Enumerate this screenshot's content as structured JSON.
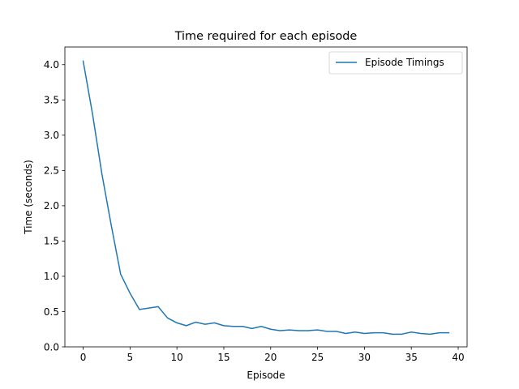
{
  "chart_data": {
    "type": "line",
    "title": "Time required for each episode",
    "xlabel": "Episode",
    "ylabel": "Time (seconds)",
    "xlim": [
      -1.95,
      40.95
    ],
    "ylim": [
      -0.0,
      4.25
    ],
    "x_ticks": [
      0,
      5,
      10,
      15,
      20,
      25,
      30,
      35,
      40
    ],
    "x_tick_labels": [
      "0",
      "5",
      "10",
      "15",
      "20",
      "25",
      "30",
      "35",
      "40"
    ],
    "y_ticks": [
      0.0,
      0.5,
      1.0,
      1.5,
      2.0,
      2.5,
      3.0,
      3.5,
      4.0
    ],
    "y_tick_labels": [
      "0.0",
      "0.5",
      "1.0",
      "1.5",
      "2.0",
      "2.5",
      "3.0",
      "3.5",
      "4.0"
    ],
    "grid": false,
    "legend_position": "top-right",
    "series": [
      {
        "name": "Episode Timings",
        "color": "#1f77b4",
        "x": [
          0,
          1,
          2,
          3,
          4,
          5,
          6,
          7,
          8,
          9,
          10,
          11,
          12,
          13,
          14,
          15,
          16,
          17,
          18,
          19,
          20,
          21,
          22,
          23,
          24,
          25,
          26,
          27,
          28,
          29,
          30,
          31,
          32,
          33,
          34,
          35,
          36,
          37,
          38,
          39
        ],
        "values": [
          4.05,
          3.3,
          2.45,
          1.72,
          1.03,
          0.76,
          0.53,
          0.55,
          0.57,
          0.41,
          0.34,
          0.3,
          0.35,
          0.32,
          0.34,
          0.3,
          0.29,
          0.29,
          0.26,
          0.29,
          0.25,
          0.23,
          0.24,
          0.23,
          0.23,
          0.24,
          0.22,
          0.22,
          0.19,
          0.21,
          0.19,
          0.2,
          0.2,
          0.18,
          0.18,
          0.21,
          0.19,
          0.18,
          0.2,
          0.2
        ]
      }
    ]
  }
}
